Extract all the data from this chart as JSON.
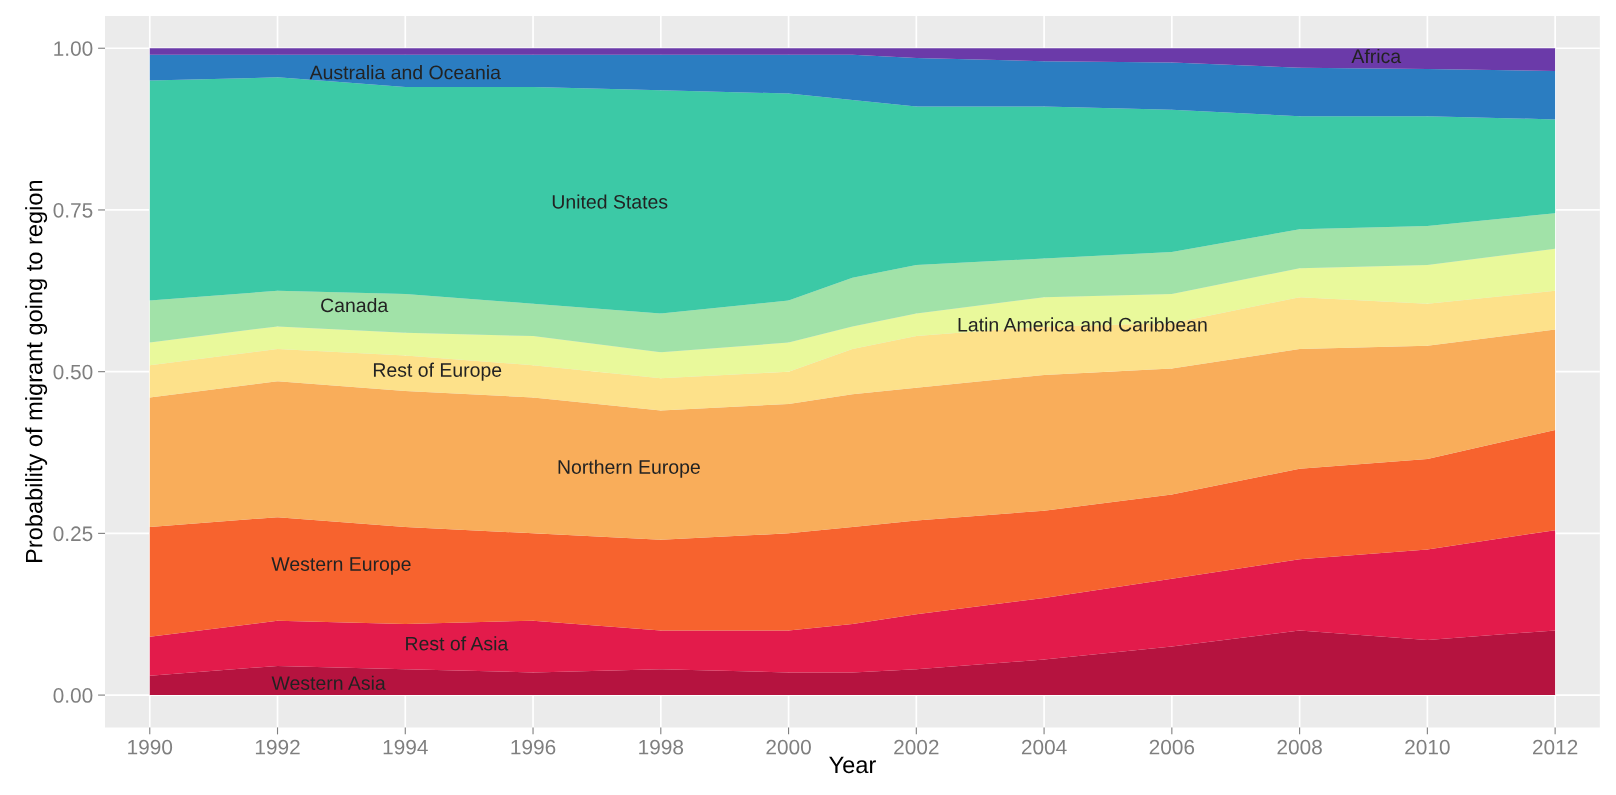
{
  "chart_data": {
    "type": "area",
    "stacked": true,
    "xlabel": "Year",
    "ylabel": "Probability of migrant going to region",
    "x": [
      1990,
      1992,
      1994,
      1996,
      1998,
      2000,
      2001,
      2002,
      2004,
      2006,
      2008,
      2010,
      2012
    ],
    "series": [
      {
        "name": "Western Asia",
        "color": "#b5133f",
        "values": [
          0.03,
          0.045,
          0.04,
          0.035,
          0.04,
          0.035,
          0.035,
          0.04,
          0.055,
          0.075,
          0.1,
          0.085,
          0.1
        ]
      },
      {
        "name": "Rest of Asia",
        "color": "#e31b4b",
        "values": [
          0.06,
          0.07,
          0.07,
          0.08,
          0.06,
          0.065,
          0.075,
          0.085,
          0.095,
          0.105,
          0.11,
          0.14,
          0.155
        ]
      },
      {
        "name": "Western Europe",
        "color": "#f7632e",
        "values": [
          0.17,
          0.16,
          0.15,
          0.135,
          0.14,
          0.15,
          0.15,
          0.145,
          0.135,
          0.13,
          0.14,
          0.14,
          0.155
        ]
      },
      {
        "name": "Northern Europe",
        "color": "#f9ad5a",
        "values": [
          0.2,
          0.21,
          0.21,
          0.21,
          0.2,
          0.2,
          0.205,
          0.205,
          0.21,
          0.195,
          0.185,
          0.175,
          0.155
        ]
      },
      {
        "name": "Rest of Europe",
        "color": "#fde18a",
        "values": [
          0.05,
          0.05,
          0.055,
          0.05,
          0.05,
          0.05,
          0.07,
          0.08,
          0.075,
          0.07,
          0.08,
          0.065,
          0.06
        ]
      },
      {
        "name": "Latin America and Caribbean",
        "color": "#e9f99b",
        "values": [
          0.035,
          0.035,
          0.035,
          0.045,
          0.04,
          0.045,
          0.035,
          0.035,
          0.045,
          0.045,
          0.045,
          0.06,
          0.065
        ]
      },
      {
        "name": "Canada",
        "color": "#a1e2a8",
        "values": [
          0.065,
          0.055,
          0.06,
          0.05,
          0.06,
          0.065,
          0.075,
          0.075,
          0.06,
          0.065,
          0.06,
          0.06,
          0.055
        ]
      },
      {
        "name": "United States",
        "color": "#3cc9a6",
        "values": [
          0.34,
          0.33,
          0.32,
          0.335,
          0.345,
          0.32,
          0.275,
          0.245,
          0.235,
          0.22,
          0.175,
          0.17,
          0.145
        ]
      },
      {
        "name": "Australia and Oceania",
        "color": "#2b7dc1",
        "values": [
          0.04,
          0.035,
          0.05,
          0.05,
          0.055,
          0.06,
          0.07,
          0.075,
          0.07,
          0.073,
          0.075,
          0.073,
          0.075
        ]
      },
      {
        "name": "Africa",
        "color": "#6b3aa9",
        "values": [
          0.01,
          0.01,
          0.01,
          0.01,
          0.01,
          0.01,
          0.01,
          0.015,
          0.02,
          0.022,
          0.03,
          0.032,
          0.035
        ]
      }
    ],
    "xlim": [
      1989.3,
      2012.7
    ],
    "ylim": [
      -0.05,
      1.05
    ],
    "xticks": [
      1990,
      1992,
      1994,
      1996,
      1998,
      2000,
      2002,
      2004,
      2006,
      2008,
      2010,
      2012
    ],
    "yticks": [
      {
        "value": 0,
        "label": "0.00"
      },
      {
        "value": 0.25,
        "label": "0.25"
      },
      {
        "value": 0.5,
        "label": "0.50"
      },
      {
        "value": 0.75,
        "label": "0.75"
      },
      {
        "value": 1,
        "label": "1.00"
      }
    ],
    "grid": true,
    "legend": false
  }
}
